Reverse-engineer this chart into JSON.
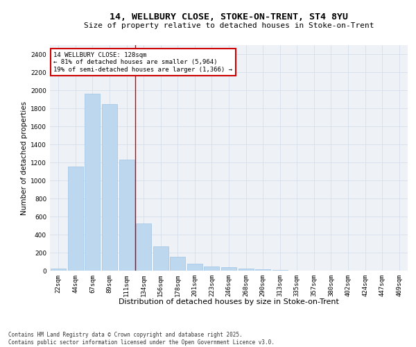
{
  "title_line1": "14, WELLBURY CLOSE, STOKE-ON-TRENT, ST4 8YU",
  "title_line2": "Size of property relative to detached houses in Stoke-on-Trent",
  "xlabel": "Distribution of detached houses by size in Stoke-on-Trent",
  "ylabel": "Number of detached properties",
  "categories": [
    "22sqm",
    "44sqm",
    "67sqm",
    "89sqm",
    "111sqm",
    "134sqm",
    "156sqm",
    "178sqm",
    "201sqm",
    "223sqm",
    "246sqm",
    "268sqm",
    "290sqm",
    "313sqm",
    "335sqm",
    "357sqm",
    "380sqm",
    "402sqm",
    "424sqm",
    "447sqm",
    "469sqm"
  ],
  "values": [
    25,
    1155,
    1960,
    1850,
    1230,
    520,
    270,
    155,
    80,
    45,
    40,
    25,
    15,
    5,
    3,
    2,
    1,
    1,
    0,
    0,
    0
  ],
  "bar_color": "#bdd7ee",
  "bar_edge_color": "#9dc3e6",
  "grid_color": "#d0dce8",
  "background_color": "#eef2f7",
  "vline_index": 5,
  "vline_color": "#cc0000",
  "annotation_title": "14 WELLBURY CLOSE: 128sqm",
  "annotation_line1": "← 81% of detached houses are smaller (5,964)",
  "annotation_line2": "19% of semi-detached houses are larger (1,366) →",
  "annotation_box_edgecolor": "#cc0000",
  "ylim": [
    0,
    2500
  ],
  "yticks": [
    0,
    200,
    400,
    600,
    800,
    1000,
    1200,
    1400,
    1600,
    1800,
    2000,
    2200,
    2400
  ],
  "footnote_line1": "Contains HM Land Registry data © Crown copyright and database right 2025.",
  "footnote_line2": "Contains public sector information licensed under the Open Government Licence v3.0.",
  "title_fontsize": 9.5,
  "subtitle_fontsize": 8,
  "ylabel_fontsize": 7.5,
  "xlabel_fontsize": 8,
  "tick_fontsize": 6.5,
  "annotation_fontsize": 6.5,
  "footnote_fontsize": 5.5
}
